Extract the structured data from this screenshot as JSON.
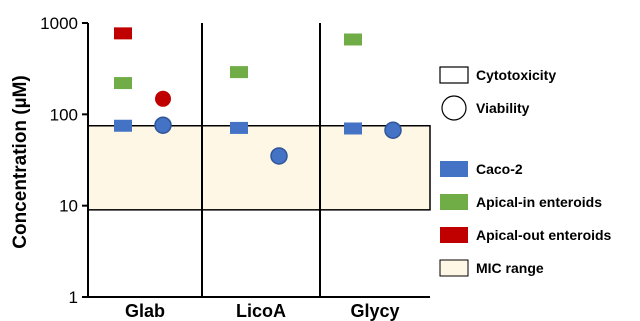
{
  "chart_data": {
    "type": "scatter",
    "yscale": "log",
    "ylim": [
      1,
      1000
    ],
    "ylabel": "Concentration (µM)",
    "yticks": [
      "1",
      "10",
      "100",
      "1000"
    ],
    "categories": [
      "Glab",
      "LicoA",
      "Glycy"
    ],
    "legend": {
      "placement": "right",
      "shape_items": [
        {
          "label": "Cytotoxicity",
          "shape": "square"
        },
        {
          "label": "Viability",
          "shape": "circle"
        }
      ],
      "color_items": [
        {
          "label": "Caco-2",
          "color": "#4472C4"
        },
        {
          "label": "Apical-in enteroids",
          "color": "#70AD47"
        },
        {
          "label": "Apical-out enteroids",
          "color": "#C00000"
        },
        {
          "label": "MIC range",
          "color": "#FFF7E6"
        }
      ]
    },
    "mic_range": [
      9,
      75
    ],
    "series": [
      {
        "name": "Caco-2",
        "color": "#4472C4",
        "points": [
          {
            "category": "Glab",
            "measure": "Cytotoxicity",
            "y": 75
          },
          {
            "category": "Glab",
            "measure": "Viability",
            "y": 76
          },
          {
            "category": "LicoA",
            "measure": "Cytotoxicity",
            "y": 71
          },
          {
            "category": "LicoA",
            "measure": "Viability",
            "y": 35
          },
          {
            "category": "Glycy",
            "measure": "Cytotoxicity",
            "y": 70
          },
          {
            "category": "Glycy",
            "measure": "Viability",
            "y": 67
          }
        ]
      },
      {
        "name": "Apical-in enteroids",
        "color": "#70AD47",
        "points": [
          {
            "category": "Glab",
            "measure": "Cytotoxicity",
            "y": 220
          },
          {
            "category": "LicoA",
            "measure": "Cytotoxicity",
            "y": 290
          },
          {
            "category": "Glycy",
            "measure": "Cytotoxicity",
            "y": 660
          }
        ]
      },
      {
        "name": "Apical-out enteroids",
        "color": "#C00000",
        "points": [
          {
            "category": "Glab",
            "measure": "Cytotoxicity",
            "y": 770
          },
          {
            "category": "Glab",
            "measure": "Viability",
            "y": 148
          }
        ]
      }
    ]
  }
}
